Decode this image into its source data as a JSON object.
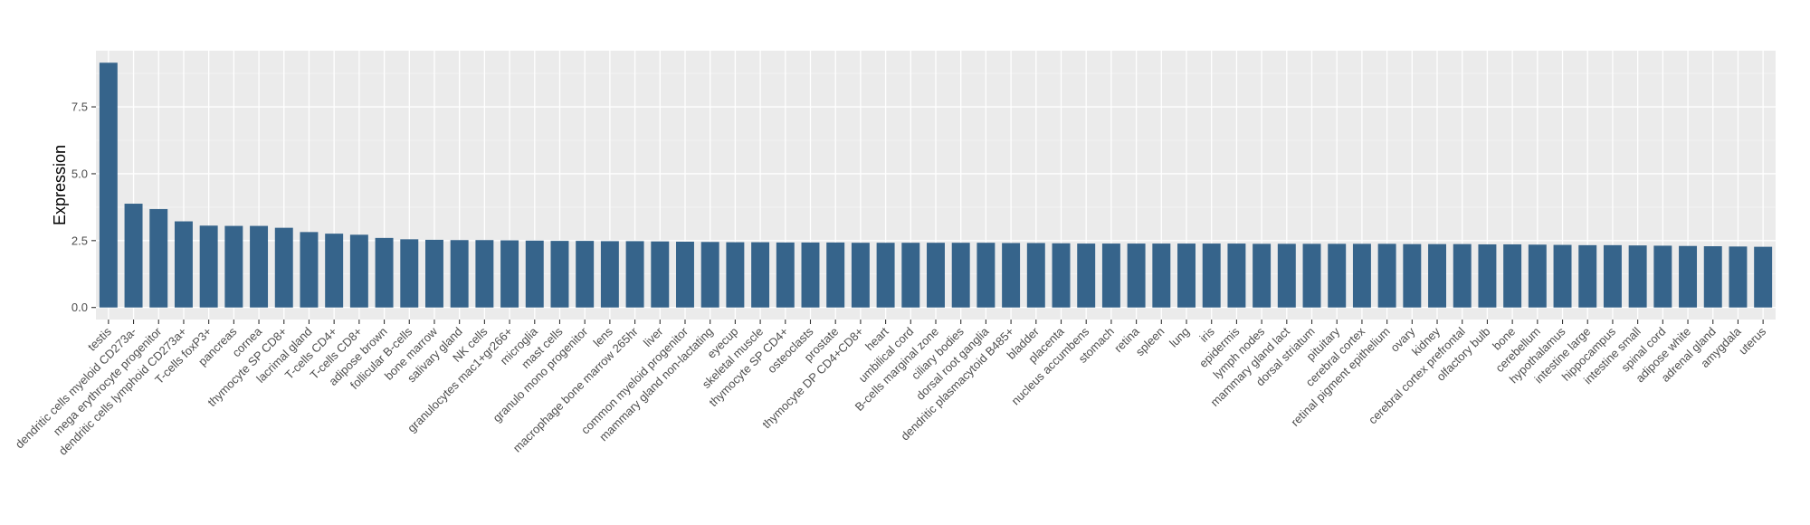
{
  "colors": {
    "panel": "#ebebeb",
    "grid_major": "#ffffff",
    "grid_minor": "#f5f5f5",
    "bar": "#36648b",
    "tick_text": "#4d4d4d"
  },
  "chart_data": {
    "type": "bar",
    "title": "",
    "xlabel": "",
    "ylabel": "Expression",
    "ylim": [
      -0.45,
      9.6
    ],
    "yticks": [
      0.0,
      2.5,
      5.0,
      7.5
    ],
    "ytick_labels": [
      "0.0",
      "2.5",
      "5.0",
      "7.5"
    ],
    "grid": true,
    "categories": [
      "testis",
      "dendritic cells myeloid CD273a-",
      "mega erythrocyte progenitor",
      "dendritic cells lymphoid CD273a+",
      "T-cells foxP3+",
      "pancreas",
      "cornea",
      "thymocyte SP CD8+",
      "lacrimal gland",
      "T-cells CD4+",
      "T-cells CD8+",
      "adipose brown",
      "follicular B-cells",
      "bone marrow",
      "salivary gland",
      "NK cells",
      "granulocytes mac1+gr266+",
      "microglia",
      "mast cells",
      "granulo mono progenitor",
      "lens",
      "macrophage bone marrow 265hr",
      "liver",
      "common myeloid progenitor",
      "mammary gland non-lactating",
      "eyecup",
      "skeletal muscle",
      "thymocyte SP CD4+",
      "osteoclasts",
      "prostate",
      "thymocyte DP CD4+CD8+",
      "heart",
      "umbilical cord",
      "B-cells marginal zone",
      "ciliary bodies",
      "dorsal root ganglia",
      "dendritic plasmacytoid B485+",
      "bladder",
      "placenta",
      "nucleus accumbens",
      "stomach",
      "retina",
      "spleen",
      "lung",
      "iris",
      "epidermis",
      "lymph nodes",
      "mammary gland  lact",
      "dorsal striatum",
      "pituitary",
      "cerebral cortex",
      "retinal pigment epithelium",
      "ovary",
      "kidney",
      "cerebral cortex prefrontal",
      "olfactory bulb",
      "bone",
      "cerebellum",
      "hypothalamus",
      "intestine large",
      "hippocampus",
      "intestine small",
      "spinal cord",
      "adipose white",
      "adrenal gland",
      "amygdala",
      "uterus"
    ],
    "values": [
      9.15,
      3.88,
      3.68,
      3.22,
      3.06,
      3.05,
      3.05,
      2.98,
      2.82,
      2.76,
      2.72,
      2.6,
      2.55,
      2.53,
      2.52,
      2.52,
      2.51,
      2.5,
      2.49,
      2.49,
      2.48,
      2.48,
      2.47,
      2.46,
      2.45,
      2.44,
      2.44,
      2.43,
      2.43,
      2.43,
      2.42,
      2.42,
      2.42,
      2.42,
      2.42,
      2.42,
      2.41,
      2.41,
      2.4,
      2.39,
      2.39,
      2.39,
      2.39,
      2.39,
      2.39,
      2.39,
      2.38,
      2.38,
      2.38,
      2.38,
      2.38,
      2.38,
      2.37,
      2.37,
      2.37,
      2.36,
      2.36,
      2.35,
      2.34,
      2.33,
      2.33,
      2.32,
      2.31,
      2.3,
      2.29,
      2.28,
      2.27
    ]
  }
}
